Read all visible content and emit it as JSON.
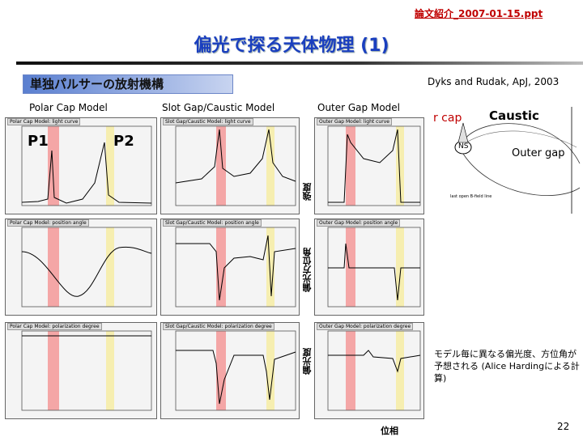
{
  "header": {
    "filename": "論文紹介_2007-01-15.ppt"
  },
  "slide": {
    "title": "偏光で探る天体物理 (1)",
    "subtitle": "単独パルサーの放射機構",
    "citation": "Dyks and Rudak, ApJ, 2003",
    "page_number": "22"
  },
  "models": {
    "polar_cap": "Polar Cap Model",
    "slot_gap": "Slot Gap/Caustic Model",
    "outer_gap": "Outer Gap Model"
  },
  "peaks": {
    "p1": "P1",
    "p2": "P2"
  },
  "axis_labels": {
    "intensity": "強度",
    "position_angle": "偏光方位角",
    "polarization_degree": "偏光度",
    "phase": "位相"
  },
  "diagram": {
    "polar_cap": "Polar cap",
    "caustic": "Caustic",
    "outer_gap": "Outer gap",
    "ns": "NS",
    "last_open": "last open B-field line"
  },
  "panels": {
    "pc_lc": "Polar Cap Model: light curve",
    "sg_lc": "Slot Gap/Caustic Model: light curve",
    "og_lc": "Outer Gap Model: light curve",
    "pc_pa": "Polar Cap Model: position angle",
    "sg_pa": "Slot Gap/Caustic Model: position angle",
    "og_pa": "Outer Gap Model: position angle",
    "pc_pd": "Polar Cap Model: polarization degree",
    "sg_pd": "Slot Gap/Caustic Model: polarization degree",
    "og_pd": "Outer Gap Model: polarization degree"
  },
  "caption": "モデル毎に異なる偏光度、方位角が予想される (Alice Hardingによる計算)",
  "colors": {
    "title": "#1a3fbf",
    "header": "#c00000",
    "polar_cap": "#c00000",
    "band_red": "#f4a6a6",
    "band_yellow": "#f6eeb0"
  }
}
